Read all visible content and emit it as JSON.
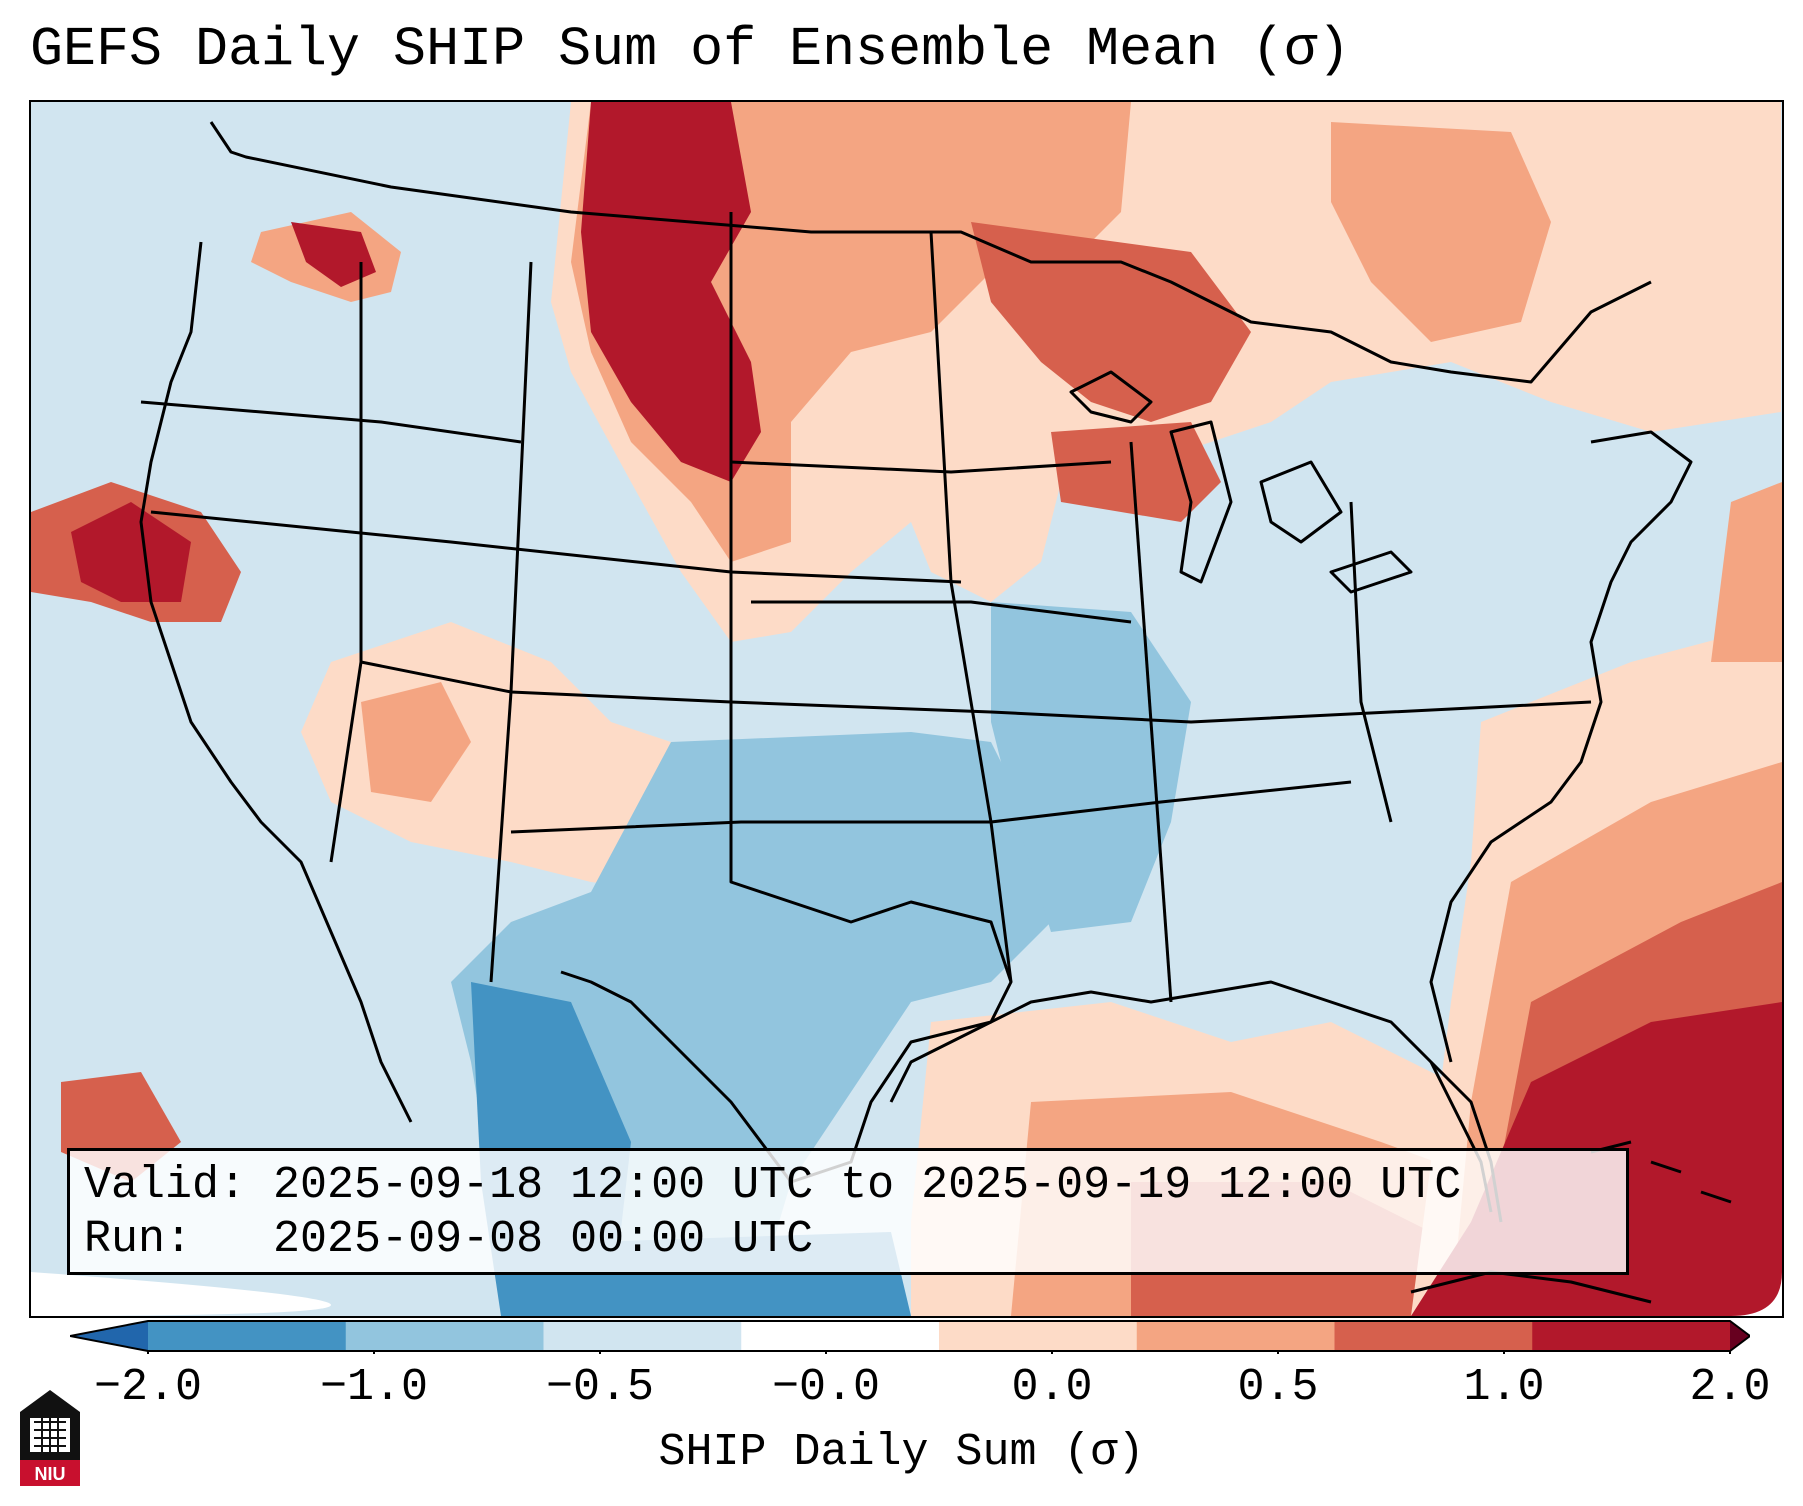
{
  "title": "GEFS Daily SHIP Sum of Ensemble Mean (σ)",
  "info": {
    "valid_label": "Valid:",
    "valid_value": "2025-09-18 12:00 UTC to 2025-09-19 12:00 UTC",
    "run_label": "Run:",
    "run_value": "2025-09-08 00:00 UTC"
  },
  "colorbar": {
    "label": "SHIP Daily Sum (σ)",
    "ticks": [
      "−2.0",
      "−1.0",
      "−0.5",
      "−0.0",
      "0.0",
      "0.5",
      "1.0",
      "2.0"
    ],
    "colors": [
      "#4393c3",
      "#92c5de",
      "#d1e5f0",
      "#ffffff",
      "#fddbc7",
      "#f4a582",
      "#d6604d",
      "#b2182b"
    ],
    "under_color": "#2166ac",
    "over_color": "#67001f"
  },
  "map": {
    "regions": [
      {
        "name": "ocean-background",
        "value": -0.3
      },
      {
        "name": "pacific-northwest",
        "value": -0.3
      },
      {
        "name": "northern-rockies-canada",
        "value": 1.5
      },
      {
        "name": "northern-plains",
        "value": 1.0
      },
      {
        "name": "great-lakes-west",
        "value": 0.9
      },
      {
        "name": "northeast-canada",
        "value": 0.8
      },
      {
        "name": "northern-california",
        "value": 1.6
      },
      {
        "name": "southwest",
        "value": 0.4
      },
      {
        "name": "texas-south-central",
        "value": -0.7
      },
      {
        "name": "mexico-west",
        "value": -1.2
      },
      {
        "name": "gulf-of-mexico",
        "value": 0.5
      },
      {
        "name": "southeast",
        "value": -0.4
      },
      {
        "name": "atlantic-east",
        "value": 1.2
      },
      {
        "name": "caribbean",
        "value": 2.0
      }
    ]
  },
  "logo": {
    "text": "NIU"
  }
}
